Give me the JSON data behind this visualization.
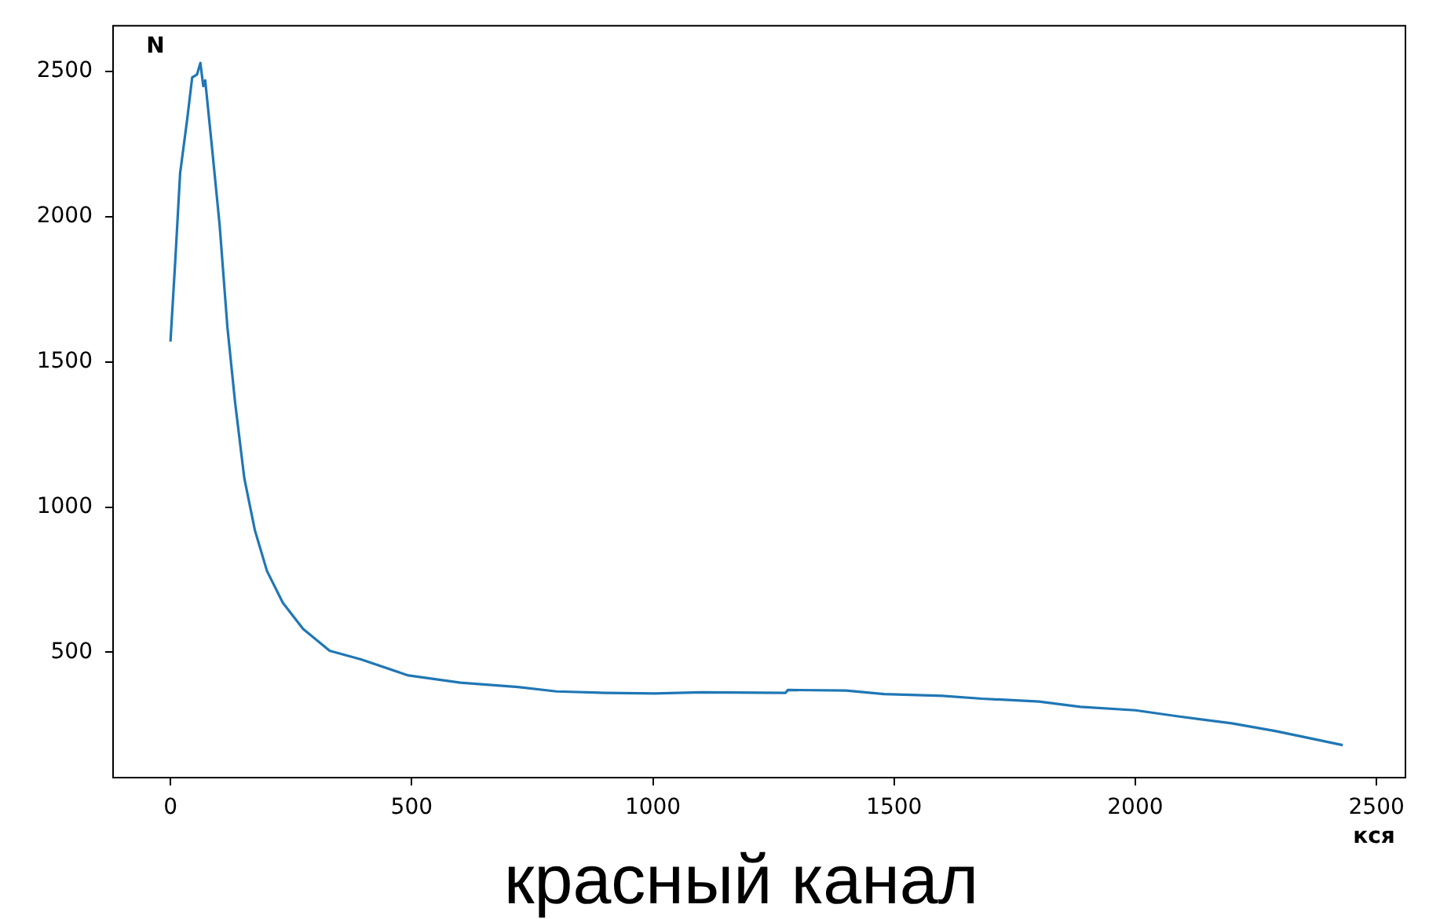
{
  "chart_data": {
    "type": "line",
    "title": "красный канал",
    "xlabel": "кся",
    "ylabel": "N",
    "grid": false,
    "legend": false,
    "marker": "none",
    "line_style": "solid",
    "xlim": [
      -119,
      2560
    ],
    "ylim": [
      68,
      2658
    ],
    "xticks": [
      0,
      500,
      1000,
      1500,
      2000,
      2500
    ],
    "yticks": [
      500,
      1000,
      1500,
      2000,
      2500
    ],
    "series": [
      {
        "color": "#1f77b4",
        "x": [
          0,
          10,
          20,
          35,
          45,
          55,
          62,
          68,
          72,
          86,
          102,
          118,
          134,
          153,
          175,
          200,
          233,
          275,
          330,
          395,
          493,
          601,
          720,
          800,
          900,
          1004,
          1100,
          1275,
          1280,
          1400,
          1479,
          1600,
          1682,
          1800,
          1886,
          2000,
          2089,
          2200,
          2292,
          2430
        ],
        "values": [
          1570,
          1850,
          2150,
          2340,
          2480,
          2490,
          2530,
          2450,
          2470,
          2240,
          1970,
          1620,
          1360,
          1100,
          920,
          780,
          670,
          580,
          505,
          475,
          420,
          395,
          380,
          365,
          360,
          358,
          362,
          360,
          370,
          368,
          356,
          350,
          340,
          330,
          312,
          300,
          279,
          255,
          228,
          180
        ]
      }
    ]
  }
}
